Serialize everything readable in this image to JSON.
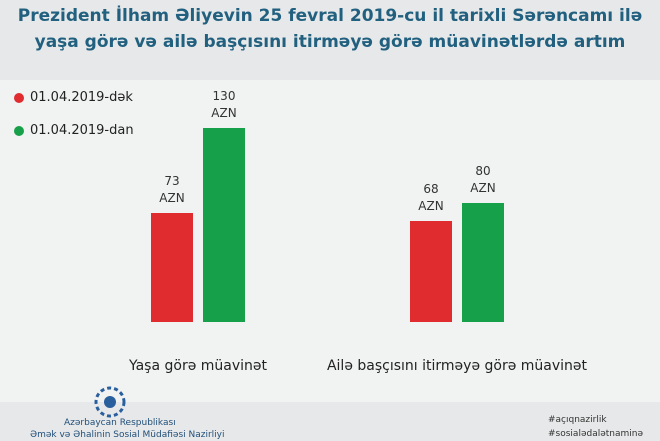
{
  "header": {
    "title_lines": [
      "Prezident İlham Əliyevin 25 fevral 2019-cu il tarixli Sərəncamı ilə",
      "yaşa görə və ailə başçısını itirməyə görə müavinətlərdə artım"
    ]
  },
  "chart_data": {
    "type": "bar",
    "categories": [
      "Yaşa görə müavinət",
      "Ailə başçısını itirməyə görə müavinət"
    ],
    "series": [
      {
        "name": "01.04.2019-dək",
        "color": "#e02b2f",
        "values": [
          73,
          68
        ],
        "value_labels": [
          "73\nAZN",
          "68\nAZN"
        ]
      },
      {
        "name": "01.04.2019-dan",
        "color": "#16a04a",
        "values": [
          130,
          80
        ],
        "value_labels": [
          "130\nAZN",
          "80\nAZN"
        ]
      }
    ]
  },
  "footer": {
    "org_lines": [
      "Azərbaycan Respublikası",
      "Əmək və Əhalinin Sosial Müdafiəsi Nazirliyi"
    ],
    "hashtags": [
      "#açıqnazirlik",
      "#sosialədalətnaminə"
    ]
  }
}
